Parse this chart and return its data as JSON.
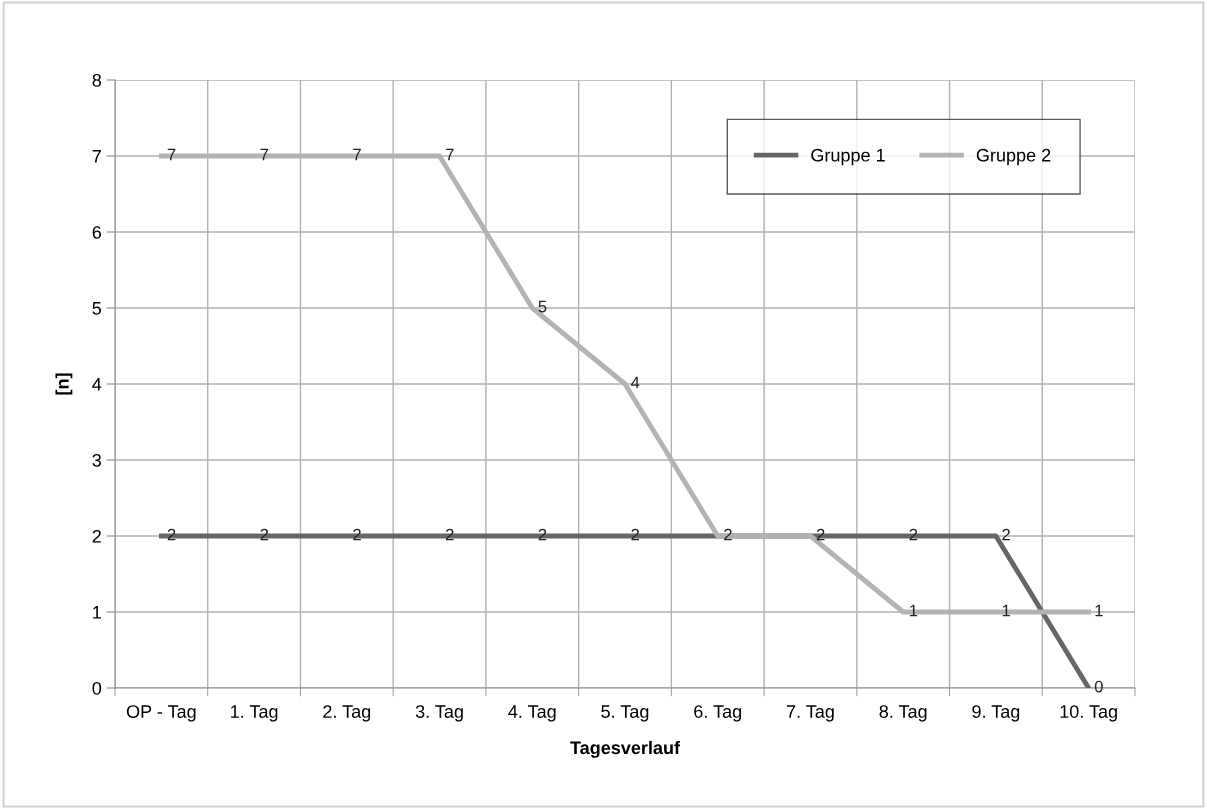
{
  "chart_data": {
    "type": "line",
    "xlabel": "Tagesverlauf",
    "ylabel": "[n]",
    "categories": [
      "OP - Tag",
      "1. Tag",
      "2. Tag",
      "3. Tag",
      "4. Tag",
      "5. Tag",
      "6. Tag",
      "7. Tag",
      "8. Tag",
      "9. Tag",
      "10. Tag"
    ],
    "series": [
      {
        "name": "Gruppe 1",
        "color": "#666666",
        "values": [
          2,
          2,
          2,
          2,
          2,
          2,
          2,
          2,
          2,
          2,
          0
        ]
      },
      {
        "name": "Gruppe 2",
        "color": "#b3b3b3",
        "values": [
          7,
          7,
          7,
          7,
          5,
          4,
          2,
          2,
          1,
          1,
          1
        ],
        "value_labels": [
          "7",
          "7",
          "7",
          "7",
          "5",
          "4",
          null,
          null,
          "1",
          "1",
          "1"
        ]
      }
    ],
    "ylim": [
      0,
      8
    ],
    "yticks": [
      0,
      1,
      2,
      3,
      4,
      5,
      6,
      7,
      8
    ],
    "grid": true,
    "legend": "top right",
    "data_labels": true,
    "marker": "none",
    "line_style": "solid"
  }
}
